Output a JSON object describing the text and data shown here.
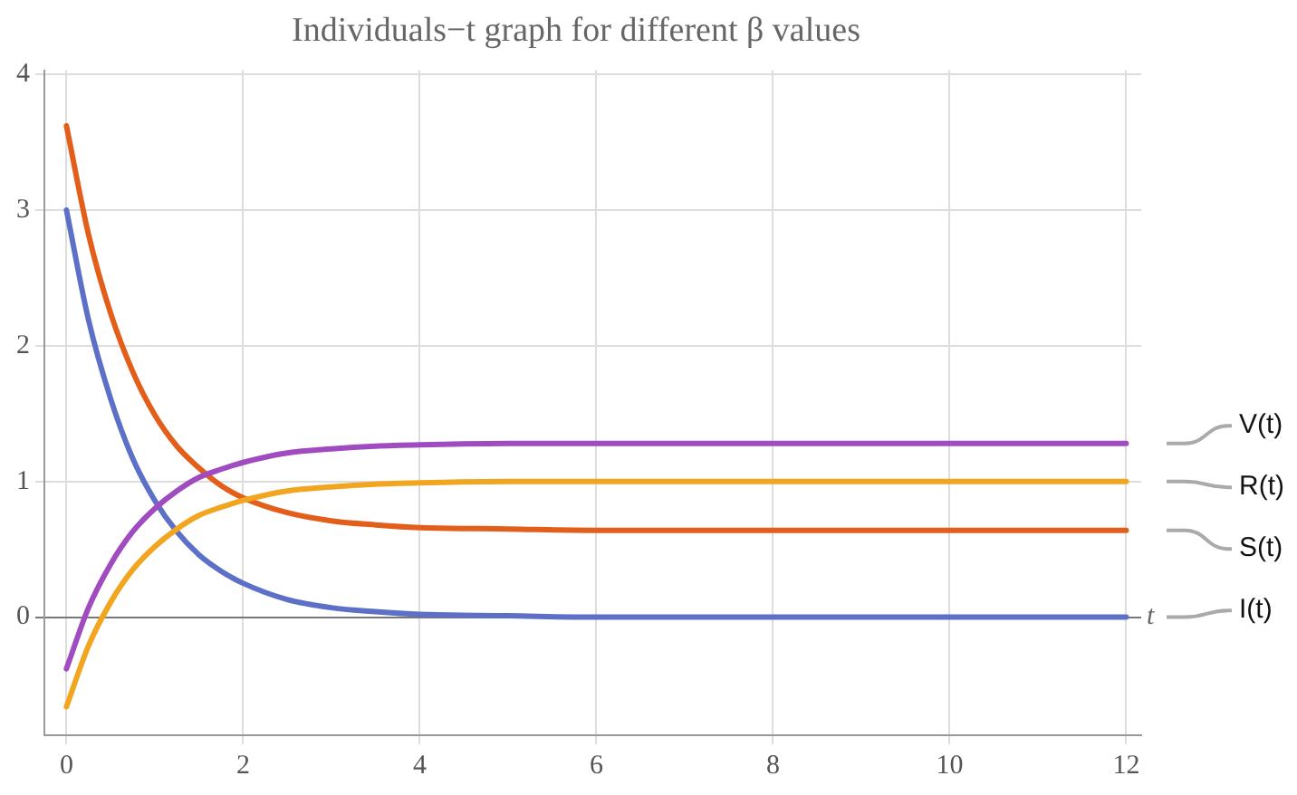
{
  "chart_data": {
    "type": "line",
    "title": "Individuals−t graph for different β values",
    "xlabel": "t",
    "x": [
      0,
      0.25,
      0.5,
      0.75,
      1,
      1.25,
      1.5,
      1.75,
      2,
      2.5,
      3,
      3.5,
      4,
      5,
      6,
      8,
      10,
      12
    ],
    "series": [
      {
        "name": "V(t)",
        "color": "#a04cc0",
        "values": [
          -0.38,
          0.07,
          0.39,
          0.63,
          0.8,
          0.93,
          1.03,
          1.09,
          1.14,
          1.21,
          1.24,
          1.26,
          1.27,
          1.28,
          1.28,
          1.28,
          1.28,
          1.28
        ]
      },
      {
        "name": "R(t)",
        "color": "#f2a51f",
        "values": [
          -0.66,
          -0.21,
          0.11,
          0.35,
          0.52,
          0.65,
          0.75,
          0.81,
          0.86,
          0.93,
          0.96,
          0.98,
          0.99,
          1,
          1,
          1,
          1,
          1
        ]
      },
      {
        "name": "S(t)",
        "color": "#e35d1b",
        "values": [
          3.62,
          2.82,
          2.24,
          1.81,
          1.49,
          1.26,
          1.1,
          0.97,
          0.88,
          0.77,
          0.71,
          0.68,
          0.66,
          0.65,
          0.64,
          0.64,
          0.64,
          0.64
        ]
      },
      {
        "name": "I(t)",
        "color": "#5d70c8",
        "values": [
          3,
          2.19,
          1.61,
          1.17,
          0.86,
          0.63,
          0.46,
          0.34,
          0.25,
          0.13,
          0.07,
          0.04,
          0.02,
          0.01,
          0,
          0,
          0,
          0
        ]
      }
    ],
    "xlim": [
      -0.25,
      12.17
    ],
    "ylim": [
      -0.87,
      4.03
    ],
    "xticks": [
      0,
      2,
      4,
      6,
      8,
      10,
      12
    ],
    "yticks": [
      0,
      1,
      2,
      3,
      4
    ],
    "grid": true,
    "legend": false,
    "marker": "none",
    "line_style": "solid"
  }
}
